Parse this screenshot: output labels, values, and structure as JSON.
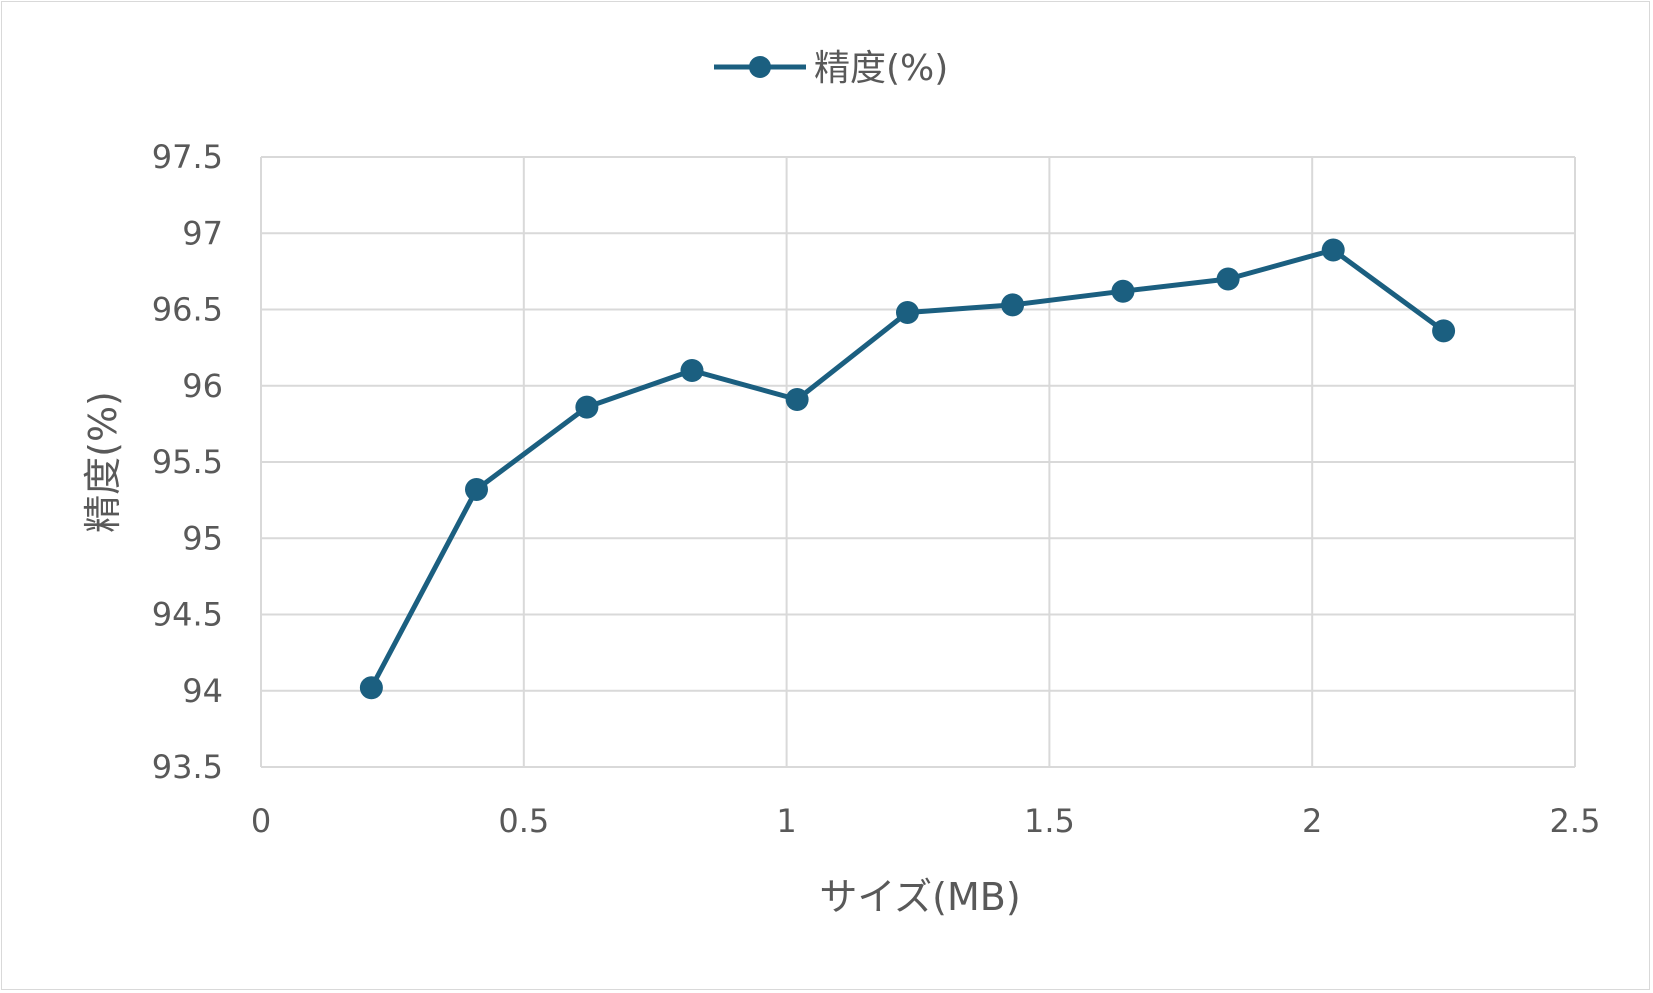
{
  "chart_data": {
    "type": "line",
    "title": "",
    "xlabel": "サイズ(MB)",
    "ylabel": "精度(%)",
    "xlim": [
      0,
      2.5
    ],
    "ylim": [
      93.5,
      97.5
    ],
    "x_ticks": [
      "0",
      "0.5",
      "1",
      "1.5",
      "2",
      "2.5"
    ],
    "y_ticks": [
      "93.5",
      "94",
      "94.5",
      "95",
      "95.5",
      "96",
      "96.5",
      "97",
      "97.5"
    ],
    "grid": true,
    "legend_position": "top",
    "series": [
      {
        "name": "精度(%)",
        "color": "#1b5f80",
        "marker": "circle",
        "x": [
          0.21,
          0.41,
          0.62,
          0.82,
          1.02,
          1.23,
          1.43,
          1.64,
          1.84,
          2.04,
          2.25
        ],
        "y": [
          94.02,
          95.32,
          95.86,
          96.1,
          95.91,
          96.48,
          96.53,
          96.62,
          96.7,
          96.89,
          96.36
        ]
      }
    ]
  }
}
